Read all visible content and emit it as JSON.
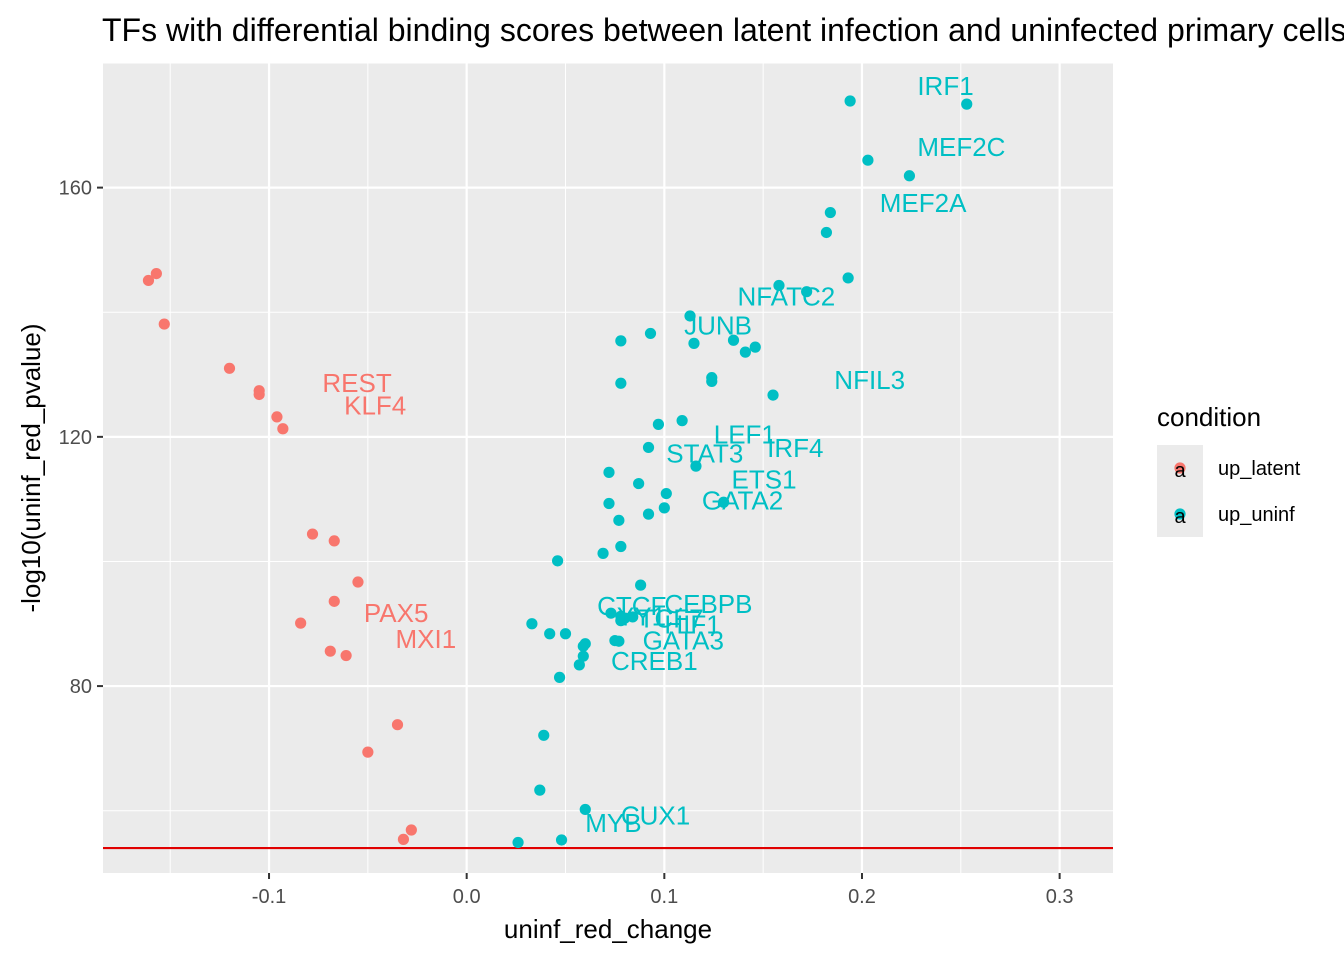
{
  "chart_data": {
    "type": "scatter",
    "title": "TFs with differential binding scores between latent infection and uninfected primary cells",
    "xlabel": "uninf_red_change",
    "ylabel": "-log10(uninf_red_pvalue)",
    "xlim": [
      -0.184,
      0.327
    ],
    "ylim": [
      50,
      180
    ],
    "xticks": [
      -0.1,
      0.0,
      0.1,
      0.2,
      0.3
    ],
    "xtick_labels": [
      "-0.1",
      "0.0",
      "0.1",
      "0.2",
      "0.3"
    ],
    "yticks": [
      80,
      120,
      160
    ],
    "ytick_labels": [
      "80",
      "120",
      "160"
    ],
    "threshold_y": 54,
    "threshold_color": "#e00000",
    "grid": true,
    "legend": {
      "title": "condition",
      "position": "right",
      "entries": [
        {
          "label": "up_latent",
          "color": "#f8766d"
        },
        {
          "label": "up_uninf",
          "color": "#00bfc4"
        }
      ]
    },
    "series": [
      {
        "name": "up_latent",
        "color": "#f8766d",
        "points": [
          [
            -0.161,
            145.1
          ],
          [
            -0.157,
            146.2
          ],
          [
            -0.153,
            138.1
          ],
          [
            -0.12,
            131.0
          ],
          [
            -0.105,
            127.4
          ],
          [
            -0.105,
            126.8
          ],
          [
            -0.096,
            123.2
          ],
          [
            -0.093,
            121.3
          ],
          [
            -0.078,
            104.4
          ],
          [
            -0.067,
            103.3
          ],
          [
            -0.055,
            96.7
          ],
          [
            -0.067,
            93.6
          ],
          [
            -0.084,
            90.1
          ],
          [
            -0.069,
            85.6
          ],
          [
            -0.061,
            84.9
          ],
          [
            -0.035,
            73.8
          ],
          [
            -0.05,
            69.4
          ],
          [
            -0.032,
            55.4
          ],
          [
            -0.028,
            56.9
          ]
        ]
      },
      {
        "name": "up_uninf",
        "color": "#00bfc4",
        "points": [
          [
            0.194,
            173.9
          ],
          [
            0.253,
            173.4
          ],
          [
            0.203,
            164.4
          ],
          [
            0.224,
            161.9
          ],
          [
            0.184,
            156.0
          ],
          [
            0.182,
            152.8
          ],
          [
            0.193,
            145.5
          ],
          [
            0.158,
            144.3
          ],
          [
            0.172,
            143.3
          ],
          [
            0.113,
            139.4
          ],
          [
            0.078,
            135.4
          ],
          [
            0.093,
            136.6
          ],
          [
            0.115,
            135.0
          ],
          [
            0.135,
            135.5
          ],
          [
            0.146,
            134.4
          ],
          [
            0.141,
            133.6
          ],
          [
            0.078,
            128.6
          ],
          [
            0.124,
            129.5
          ],
          [
            0.124,
            128.9
          ],
          [
            0.155,
            126.7
          ],
          [
            0.097,
            122.0
          ],
          [
            0.109,
            122.6
          ],
          [
            0.092,
            118.3
          ],
          [
            0.116,
            115.3
          ],
          [
            0.072,
            114.3
          ],
          [
            0.087,
            112.5
          ],
          [
            0.101,
            110.9
          ],
          [
            0.072,
            109.3
          ],
          [
            0.1,
            108.6
          ],
          [
            0.092,
            107.6
          ],
          [
            0.077,
            106.6
          ],
          [
            0.13,
            109.5
          ],
          [
            0.078,
            102.4
          ],
          [
            0.069,
            101.3
          ],
          [
            0.046,
            100.1
          ],
          [
            0.088,
            96.2
          ],
          [
            0.073,
            91.7
          ],
          [
            0.078,
            91.2
          ],
          [
            0.08,
            90.9
          ],
          [
            0.084,
            91.1
          ],
          [
            0.078,
            90.5
          ],
          [
            0.033,
            90.0
          ],
          [
            0.042,
            88.4
          ],
          [
            0.05,
            88.4
          ],
          [
            0.075,
            87.3
          ],
          [
            0.077,
            87.2
          ],
          [
            0.06,
            86.8
          ],
          [
            0.059,
            86.4
          ],
          [
            0.059,
            84.8
          ],
          [
            0.057,
            83.4
          ],
          [
            0.047,
            81.4
          ],
          [
            0.039,
            72.1
          ],
          [
            0.037,
            63.3
          ],
          [
            0.06,
            60.2
          ],
          [
            0.048,
            55.3
          ],
          [
            0.026,
            54.9
          ]
        ]
      }
    ],
    "labels": [
      {
        "text": "IRF1",
        "x": 0.228,
        "y": 174.9,
        "color": "#00bfc4"
      },
      {
        "text": "MEF2C",
        "x": 0.228,
        "y": 165.1,
        "color": "#00bfc4"
      },
      {
        "text": "MEF2A",
        "x": 0.209,
        "y": 156.1,
        "color": "#00bfc4"
      },
      {
        "text": "NFATC2",
        "x": 0.137,
        "y": 141.1,
        "color": "#00bfc4"
      },
      {
        "text": "JUNB",
        "x": 0.11,
        "y": 136.4,
        "color": "#00bfc4"
      },
      {
        "text": "NFIL3",
        "x": 0.186,
        "y": 127.7,
        "color": "#00bfc4"
      },
      {
        "text": "LEF1",
        "x": 0.125,
        "y": 118.9,
        "color": "#00bfc4"
      },
      {
        "text": "IRF4",
        "x": 0.152,
        "y": 116.8,
        "color": "#00bfc4"
      },
      {
        "text": "STAT3",
        "x": 0.101,
        "y": 115.9,
        "color": "#00bfc4"
      },
      {
        "text": "ETS1",
        "x": 0.134,
        "y": 111.7,
        "color": "#00bfc4"
      },
      {
        "text": "GATA2",
        "x": 0.119,
        "y": 108.3,
        "color": "#00bfc4"
      },
      {
        "text": "CEBPB",
        "x": 0.1,
        "y": 91.7,
        "color": "#00bfc4"
      },
      {
        "text": "CTCF",
        "x": 0.066,
        "y": 91.4,
        "color": "#00bfc4"
      },
      {
        "text": "YY1",
        "x": 0.076,
        "y": 89.7,
        "color": "#00bfc4"
      },
      {
        "text": "TCF7",
        "x": 0.087,
        "y": 89.4,
        "color": "#00bfc4"
      },
      {
        "text": "HIF1",
        "x": 0.1,
        "y": 88.4,
        "color": "#00bfc4"
      },
      {
        "text": "GATA3",
        "x": 0.089,
        "y": 85.9,
        "color": "#00bfc4"
      },
      {
        "text": "CREB1",
        "x": 0.073,
        "y": 82.6,
        "color": "#00bfc4"
      },
      {
        "text": "CUX1",
        "x": 0.078,
        "y": 57.8,
        "color": "#00bfc4"
      },
      {
        "text": "MYB",
        "x": 0.06,
        "y": 56.6,
        "color": "#00bfc4"
      },
      {
        "text": "REST",
        "x": -0.073,
        "y": 127.2,
        "color": "#f8766d"
      },
      {
        "text": "KLF4",
        "x": -0.062,
        "y": 123.6,
        "color": "#f8766d"
      },
      {
        "text": "PAX5",
        "x": -0.052,
        "y": 90.3,
        "color": "#f8766d"
      },
      {
        "text": "MXI1",
        "x": -0.036,
        "y": 86.1,
        "color": "#f8766d"
      }
    ]
  }
}
